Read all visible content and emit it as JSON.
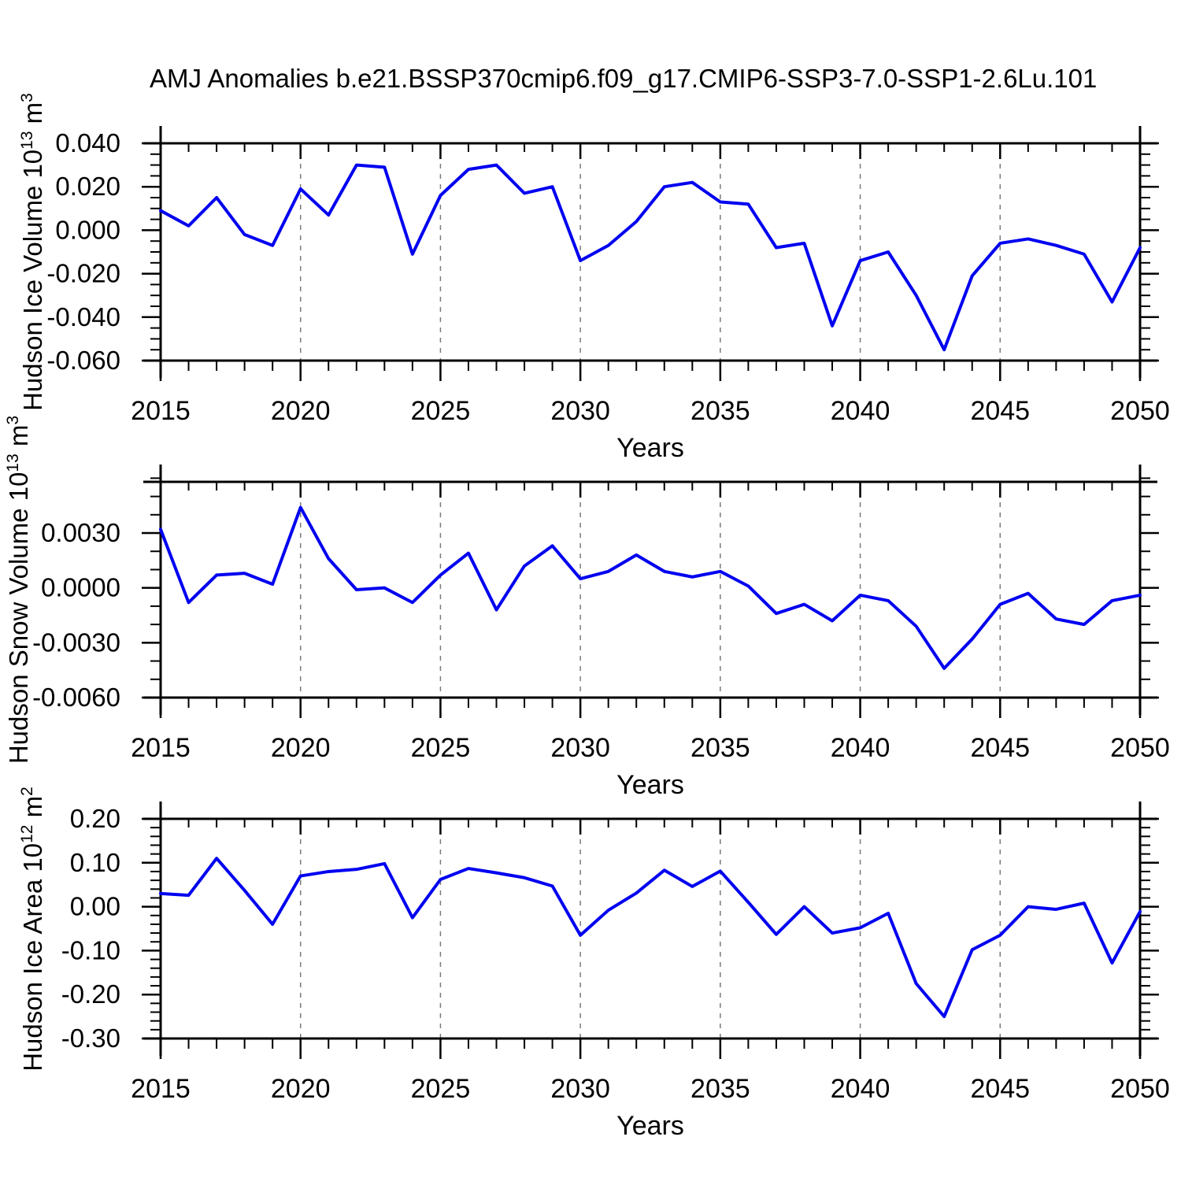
{
  "title": "AMJ Anomalies b.e21.BSSP370cmip6.f09_g17.CMIP6-SSP3-7.0-SSP1-2.6Lu.101",
  "colors": {
    "line": "#0000f0",
    "axis": "#000000",
    "grid": "#7a7a7a",
    "background": "#ffffff",
    "text": "#000000"
  },
  "x_axis": {
    "label": "Years",
    "start": 2015,
    "end": 2050,
    "major_step": 5,
    "minor_step": 1,
    "grid_years": [
      2020,
      2025,
      2030,
      2035,
      2040,
      2045
    ],
    "tick_labels": [
      "2015",
      "2020",
      "2025",
      "2030",
      "2035",
      "2040",
      "2045",
      "2050"
    ]
  },
  "years": [
    2015,
    2016,
    2017,
    2018,
    2019,
    2020,
    2021,
    2022,
    2023,
    2024,
    2025,
    2026,
    2027,
    2028,
    2029,
    2030,
    2031,
    2032,
    2033,
    2034,
    2035,
    2036,
    2037,
    2038,
    2039,
    2040,
    2041,
    2042,
    2043,
    2044,
    2045,
    2046,
    2047,
    2048,
    2049,
    2050
  ],
  "chart_data": [
    {
      "type": "line",
      "id": "hudson-ice-volume",
      "ylabel": "Hudson Ice Volume 10^13 m^3",
      "ylabel_parts": {
        "p1": "Hudson Ice Volume 10",
        "s1": "13",
        "p2": " m",
        "s2": "3"
      },
      "xlabel": "Years",
      "ylim": [
        -0.06,
        0.04
      ],
      "ytick_values": [
        0.04,
        0.02,
        0.0,
        -0.02,
        -0.04,
        -0.06
      ],
      "ytick_labels": [
        "0.040",
        "0.020",
        "0.000",
        "-0.020",
        "-0.040",
        "-0.060"
      ],
      "yminor_step": 0.005,
      "grid": "vertical-dashed",
      "legend": "none",
      "values": [
        0.009,
        0.002,
        0.015,
        -0.002,
        -0.007,
        0.019,
        0.007,
        0.03,
        0.029,
        -0.011,
        0.016,
        0.028,
        0.03,
        0.017,
        0.02,
        -0.014,
        -0.007,
        0.004,
        0.02,
        0.022,
        0.013,
        0.012,
        -0.008,
        -0.006,
        -0.044,
        -0.014,
        -0.01,
        -0.03,
        -0.055,
        -0.021,
        -0.006,
        -0.004,
        -0.007,
        -0.011,
        -0.033,
        -0.008
      ]
    },
    {
      "type": "line",
      "id": "hudson-snow-volume",
      "ylabel": "Hudson Snow Volume 10^13 m^3",
      "ylabel_parts": {
        "p1": "Hudson Snow Volume 10",
        "s1": "13",
        "p2": " m",
        "s2": "3"
      },
      "xlabel": "Years",
      "ylim": [
        -0.006,
        0.0058
      ],
      "ytick_values": [
        0.003,
        0.0,
        -0.003,
        -0.006
      ],
      "ytick_labels": [
        "0.0030",
        "0.0000",
        "-0.0030",
        "-0.0060"
      ],
      "yminor_step": 0.001,
      "grid": "vertical-dashed",
      "legend": "none",
      "values": [
        0.0032,
        -0.0008,
        0.0007,
        0.0008,
        0.0002,
        0.0044,
        0.0016,
        -0.0001,
        0.0,
        -0.0008,
        0.0007,
        0.0019,
        -0.0012,
        0.0012,
        0.0023,
        0.0005,
        0.0009,
        0.0018,
        0.0009,
        0.0006,
        0.0009,
        0.0001,
        -0.0014,
        -0.0009,
        -0.0018,
        -0.0004,
        -0.0007,
        -0.0021,
        -0.0044,
        -0.0028,
        -0.0009,
        -0.0003,
        -0.0017,
        -0.002,
        -0.0007,
        -0.0004
      ]
    },
    {
      "type": "line",
      "id": "hudson-ice-area",
      "ylabel": "Hudson Ice Area 10^12 m^2",
      "ylabel_parts": {
        "p1": "Hudson Ice Area 10",
        "s1": "12",
        "p2": " m",
        "s2": "2"
      },
      "xlabel": "Years",
      "ylim": [
        -0.3,
        0.2
      ],
      "ytick_values": [
        0.2,
        0.1,
        0.0,
        -0.1,
        -0.2,
        -0.3
      ],
      "ytick_labels": [
        "0.20",
        "0.10",
        "0.00",
        "-0.10",
        "-0.20",
        "-0.30"
      ],
      "yminor_step": 0.02,
      "grid": "vertical-dashed",
      "legend": "none",
      "values": [
        0.03,
        0.026,
        0.11,
        0.037,
        -0.04,
        0.07,
        0.08,
        0.085,
        0.098,
        -0.025,
        0.062,
        0.087,
        0.077,
        0.066,
        0.047,
        -0.065,
        -0.008,
        0.031,
        0.083,
        0.046,
        0.081,
        0.01,
        -0.063,
        0.0,
        -0.06,
        -0.048,
        -0.015,
        -0.175,
        -0.25,
        -0.098,
        -0.065,
        0.0,
        -0.006,
        0.008,
        -0.128,
        -0.011
      ]
    }
  ]
}
